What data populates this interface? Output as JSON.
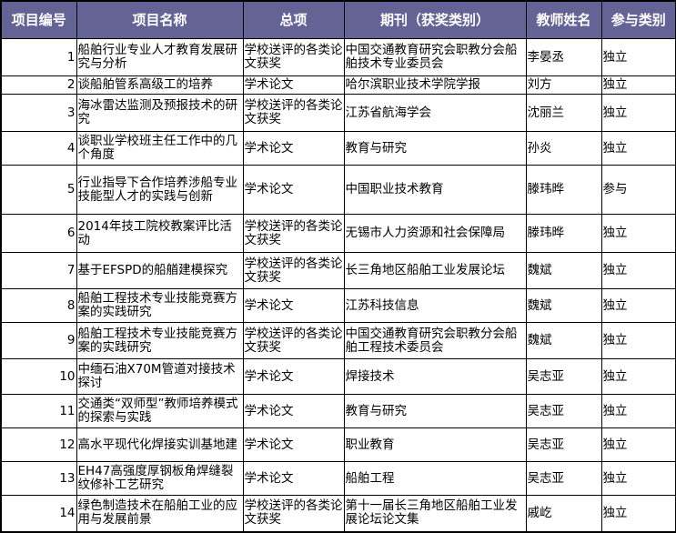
{
  "header": {
    "colors": {
      "header_bg": "#636495",
      "header_text": "#ffffff"
    },
    "columns": [
      "项目编号",
      "项目名称",
      "总项",
      "期刊（获奖类别）",
      "教师姓名",
      "参与类别"
    ]
  },
  "rows": [
    {
      "id": "1",
      "name": "船舶行业专业人才教育发展研究与分析",
      "category": "学校送评的各类论文获奖",
      "journal": "中国交通教育研究会职教分会船舶技术专业委员会",
      "teacher": "李晏丞",
      "role": "独立"
    },
    {
      "id": "2",
      "name": "谈船舶管系高级工的培养",
      "category": "学术论文",
      "journal": "哈尔滨职业技术学院学报",
      "teacher": "刘方",
      "role": "独立"
    },
    {
      "id": "3",
      "name": "海冰雷达监测及预报技术的研究",
      "category": "学校送评的各类论文获奖",
      "journal": "江苏省航海学会",
      "teacher": "沈丽兰",
      "role": "独立"
    },
    {
      "id": "4",
      "name": "谈职业学校班主任工作中的几个角度",
      "category": "学术论文",
      "journal": "教育与研究",
      "teacher": "孙炎",
      "role": "独立"
    },
    {
      "id": "5",
      "name": "行业指导下合作培养涉船专业技能型人才的实践与创新",
      "category": "学术论文",
      "journal": "中国职业技术教育",
      "teacher": "滕玮晔",
      "role": "参与"
    },
    {
      "id": "6",
      "name": "2014年技工院校教案评比活动",
      "category": "学校送评的各类论文获奖",
      "journal": "无锡市人力资源和社会保障局",
      "teacher": "滕玮晔",
      "role": "独立"
    },
    {
      "id": "7",
      "name": "基于EFSPD的船艏建模探究",
      "category": "学校送评的各类论文获奖",
      "journal": "长三角地区船舶工业发展论坛",
      "teacher": "魏斌",
      "role": "独立"
    },
    {
      "id": "8",
      "name": "船舶工程技术专业技能竞赛方案的实践研究",
      "category": "学术论文",
      "journal": "江苏科技信息",
      "teacher": "魏斌",
      "role": "独立"
    },
    {
      "id": "9",
      "name": "船舶工程技术专业技能竞赛方案的实践研究",
      "category": "学校送评的各类论文获奖",
      "journal": "中国交通教育研究会职教分会船舶工程技术委员会",
      "teacher": "魏斌",
      "role": "独立"
    },
    {
      "id": "10",
      "name": "中缅石油X70M管道对接技术探讨",
      "category": "学术论文",
      "journal": "焊接技术",
      "teacher": "吴志亚",
      "role": "独立"
    },
    {
      "id": "11",
      "name": "交通类“双师型”教师培养模式的探索与实践",
      "category": "学术论文",
      "journal": "教育与研究",
      "teacher": "吴志亚",
      "role": "独立"
    },
    {
      "id": "12",
      "name": "高水平现代化焊接实训基地建",
      "category": "学术论文",
      "journal": "职业教育",
      "teacher": "吴志亚",
      "role": "独立"
    },
    {
      "id": "13",
      "name": "EH47高强度厚钢板角焊缝裂纹修补工艺研究",
      "category": "学术论文",
      "journal": "船舶工程",
      "teacher": "吴志亚",
      "role": "独立"
    },
    {
      "id": "14",
      "name": "绿色制造技术在船舶工业的应用与发展前景",
      "category": "学校送评的各类论文获奖",
      "journal": "第十一届长三角地区船舶工业发展论坛论文集",
      "teacher": "戚屹",
      "role": "独立"
    }
  ]
}
